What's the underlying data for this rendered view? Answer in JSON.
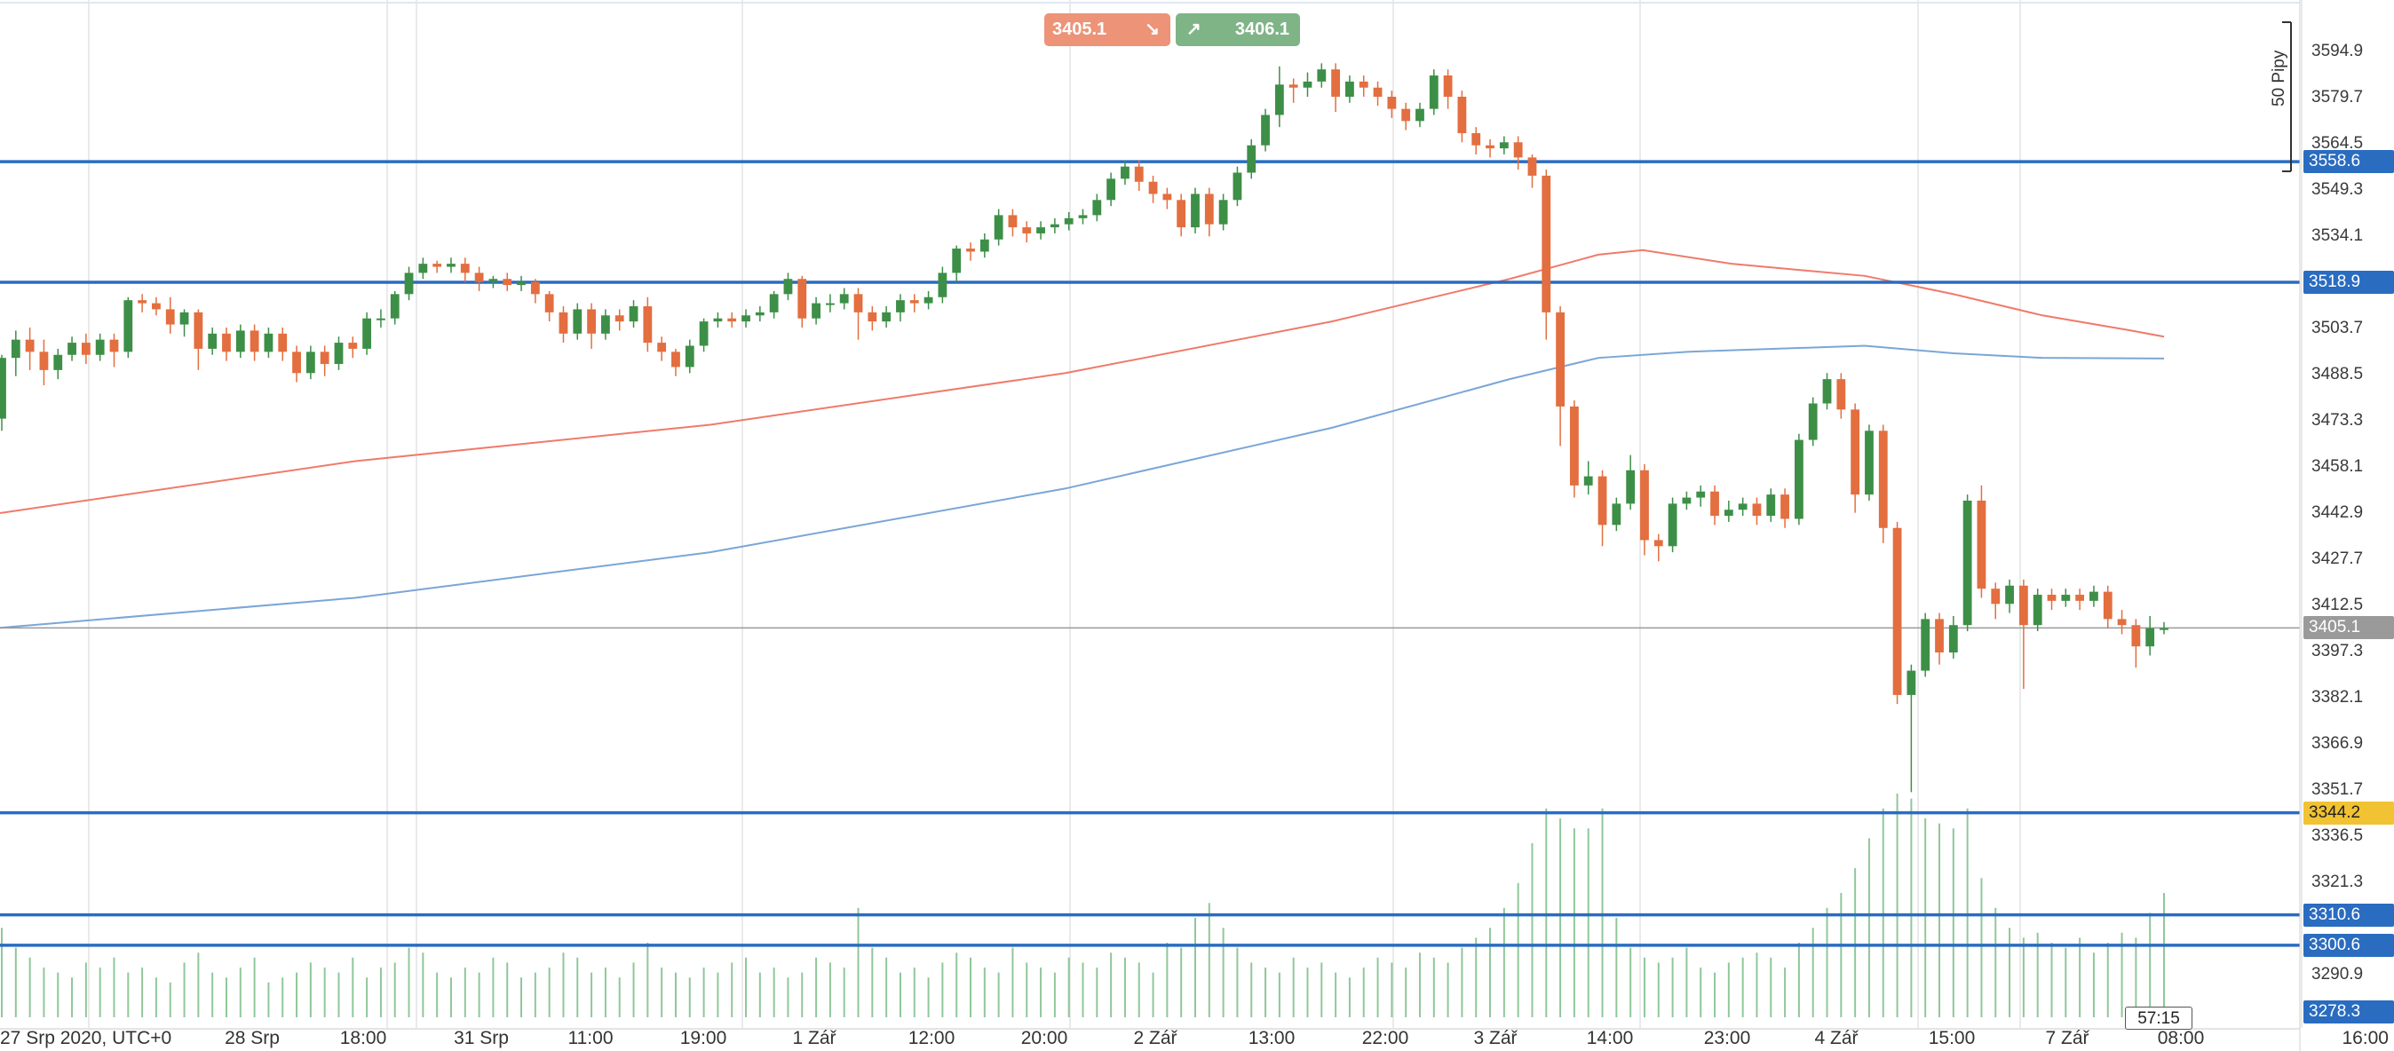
{
  "trade_buttons": {
    "sell_price": "3405.1",
    "buy_price": "3406.1",
    "sell_arrow": "↘",
    "buy_arrow": "↗",
    "sell_color": "#ec9378",
    "buy_color": "#7fb487"
  },
  "pips_label": "50 Pipy",
  "countdown": "57:15",
  "price_axis": {
    "ticks": [
      "3594.9",
      "3579.7",
      "3564.5",
      "3549.3",
      "3534.1",
      "3518.9",
      "3503.7",
      "3488.5",
      "3473.3",
      "3458.1",
      "3442.9",
      "3427.7",
      "3412.5",
      "3397.3",
      "3382.1",
      "3366.9",
      "3351.7",
      "3336.5",
      "3321.3",
      "3290.9"
    ],
    "tick_values": [
      3594.9,
      3579.7,
      3564.5,
      3549.3,
      3534.1,
      3518.9,
      3503.7,
      3488.5,
      3473.3,
      3458.1,
      3442.9,
      3427.7,
      3412.5,
      3397.3,
      3382.1,
      3366.9,
      3351.7,
      3336.5,
      3321.3,
      3290.9
    ],
    "current_price": "3405.1",
    "bottom_label": "3278.3"
  },
  "levels": [
    {
      "label": "3558.6",
      "value": 3558.6,
      "color": "#2a6cc0",
      "bg": "#2a6cc0"
    },
    {
      "label": "3518.9",
      "value": 3518.9,
      "color": "#2a6cc0",
      "bg": "#2a6cc0"
    },
    {
      "label": "3344.2",
      "value": 3344.2,
      "color": "#2a6cc0",
      "bg": "#f1c232"
    },
    {
      "label": "3310.6",
      "value": 3310.6,
      "color": "#2a6cc0",
      "bg": "#2a6cc0"
    },
    {
      "label": "3300.6",
      "value": 3300.6,
      "color": "#2a6cc0",
      "bg": "#2a6cc0"
    }
  ],
  "time_axis": {
    "labels": [
      "27 Srp 2020, UTC+0",
      "28 Srp",
      "18:00",
      "31 Srp",
      "11:00",
      "19:00",
      "1 Zář",
      "12:00",
      "20:00",
      "2 Zář",
      "13:00",
      "22:00",
      "3 Zář",
      "14:00",
      "23:00",
      "4 Zář",
      "15:00",
      "7 Zář",
      "08:00",
      "16:00"
    ]
  },
  "chart_data": {
    "type": "candlestick",
    "up_color": "#3d8f47",
    "down_color": "#e36e3f",
    "ma_fast_color": "#f07a6a",
    "ma_slow_color": "#7aa6d6",
    "ylim": [
      3278.3,
      3604.0
    ],
    "candles": [
      [
        3474,
        3494,
        3470,
        3495
      ],
      [
        3494,
        3500,
        3488,
        3503
      ],
      [
        3500,
        3496,
        3490,
        3504
      ],
      [
        3496,
        3490,
        3485,
        3500
      ],
      [
        3490,
        3495,
        3487,
        3497
      ],
      [
        3495,
        3499,
        3493,
        3501
      ],
      [
        3499,
        3495,
        3492,
        3502
      ],
      [
        3495,
        3500,
        3493,
        3502
      ],
      [
        3500,
        3496,
        3491,
        3502
      ],
      [
        3496,
        3513,
        3494,
        3514
      ],
      [
        3513,
        3512,
        3509,
        3515
      ],
      [
        3512,
        3510,
        3508,
        3514
      ],
      [
        3510,
        3505,
        3502,
        3514
      ],
      [
        3505,
        3509,
        3501,
        3510
      ],
      [
        3509,
        3497,
        3490,
        3510
      ],
      [
        3497,
        3502,
        3495,
        3504
      ],
      [
        3502,
        3496,
        3493,
        3504
      ],
      [
        3496,
        3503,
        3494,
        3505
      ],
      [
        3503,
        3496,
        3493,
        3505
      ],
      [
        3496,
        3502,
        3494,
        3504
      ],
      [
        3502,
        3496,
        3493,
        3504
      ],
      [
        3496,
        3489,
        3486,
        3498
      ],
      [
        3489,
        3496,
        3487,
        3498
      ],
      [
        3496,
        3492,
        3488,
        3498
      ],
      [
        3492,
        3499,
        3490,
        3501
      ],
      [
        3499,
        3497,
        3494,
        3501
      ],
      [
        3497,
        3507,
        3495,
        3509
      ],
      [
        3507,
        3507,
        3504,
        3510
      ],
      [
        3507,
        3515,
        3505,
        3516
      ],
      [
        3515,
        3522,
        3513,
        3524
      ],
      [
        3522,
        3525,
        3520,
        3527
      ],
      [
        3525,
        3524,
        3522,
        3526
      ],
      [
        3524,
        3525,
        3522,
        3527
      ],
      [
        3525,
        3522,
        3519,
        3527
      ],
      [
        3522,
        3519,
        3516,
        3524
      ],
      [
        3519,
        3520,
        3517,
        3521
      ],
      [
        3520,
        3518,
        3516,
        3522
      ],
      [
        3518,
        3519,
        3516,
        3521
      ],
      [
        3519,
        3515,
        3512,
        3520
      ],
      [
        3515,
        3509,
        3506,
        3516
      ],
      [
        3509,
        3502,
        3499,
        3511
      ],
      [
        3502,
        3510,
        3500,
        3512
      ],
      [
        3510,
        3502,
        3497,
        3512
      ],
      [
        3502,
        3508,
        3500,
        3510
      ],
      [
        3508,
        3506,
        3503,
        3510
      ],
      [
        3506,
        3511,
        3504,
        3513
      ],
      [
        3511,
        3499,
        3496,
        3514
      ],
      [
        3499,
        3496,
        3493,
        3501
      ],
      [
        3496,
        3491,
        3488,
        3497
      ],
      [
        3491,
        3498,
        3489,
        3500
      ],
      [
        3498,
        3506,
        3496,
        3507
      ],
      [
        3506,
        3507,
        3504,
        3509
      ],
      [
        3507,
        3506,
        3504,
        3509
      ],
      [
        3506,
        3508,
        3504,
        3510
      ],
      [
        3508,
        3509,
        3506,
        3511
      ],
      [
        3509,
        3515,
        3507,
        3516
      ],
      [
        3515,
        3520,
        3513,
        3522
      ],
      [
        3520,
        3507,
        3504,
        3521
      ],
      [
        3507,
        3512,
        3505,
        3514
      ],
      [
        3512,
        3512,
        3509,
        3515
      ],
      [
        3512,
        3515,
        3510,
        3517
      ],
      [
        3515,
        3509,
        3500,
        3517
      ],
      [
        3509,
        3506,
        3503,
        3511
      ],
      [
        3506,
        3509,
        3504,
        3511
      ],
      [
        3509,
        3513,
        3506,
        3515
      ],
      [
        3513,
        3512,
        3509,
        3515
      ],
      [
        3512,
        3514,
        3510,
        3516
      ],
      [
        3514,
        3522,
        3512,
        3524
      ],
      [
        3522,
        3530,
        3519,
        3531
      ],
      [
        3530,
        3529,
        3526,
        3532
      ],
      [
        3529,
        3533,
        3527,
        3535
      ],
      [
        3533,
        3541,
        3531,
        3543
      ],
      [
        3541,
        3537,
        3534,
        3543
      ],
      [
        3537,
        3535,
        3532,
        3539
      ],
      [
        3535,
        3537,
        3533,
        3539
      ],
      [
        3537,
        3538,
        3535,
        3540
      ],
      [
        3538,
        3540,
        3536,
        3542
      ],
      [
        3540,
        3541,
        3538,
        3543
      ],
      [
        3541,
        3546,
        3539,
        3548
      ],
      [
        3546,
        3553,
        3544,
        3555
      ],
      [
        3553,
        3557,
        3551,
        3559
      ],
      [
        3557,
        3552,
        3549,
        3559
      ],
      [
        3552,
        3548,
        3545,
        3554
      ],
      [
        3548,
        3546,
        3543,
        3550
      ],
      [
        3546,
        3537,
        3534,
        3548
      ],
      [
        3537,
        3548,
        3535,
        3550
      ],
      [
        3548,
        3538,
        3534,
        3550
      ],
      [
        3538,
        3546,
        3536,
        3548
      ],
      [
        3546,
        3555,
        3544,
        3557
      ],
      [
        3555,
        3564,
        3553,
        3566
      ],
      [
        3564,
        3574,
        3562,
        3576
      ],
      [
        3574,
        3584,
        3570,
        3590
      ],
      [
        3584,
        3583,
        3578,
        3586
      ],
      [
        3583,
        3585,
        3580,
        3588
      ],
      [
        3585,
        3589,
        3583,
        3591
      ],
      [
        3589,
        3580,
        3575,
        3591
      ],
      [
        3580,
        3585,
        3578,
        3587
      ],
      [
        3585,
        3583,
        3580,
        3587
      ],
      [
        3583,
        3580,
        3577,
        3585
      ],
      [
        3580,
        3576,
        3573,
        3582
      ],
      [
        3576,
        3572,
        3569,
        3578
      ],
      [
        3572,
        3576,
        3570,
        3578
      ],
      [
        3576,
        3587,
        3574,
        3589
      ],
      [
        3587,
        3580,
        3576,
        3589
      ],
      [
        3580,
        3568,
        3565,
        3582
      ],
      [
        3568,
        3564,
        3561,
        3570
      ],
      [
        3564,
        3563,
        3560,
        3566
      ],
      [
        3563,
        3565,
        3561,
        3567
      ],
      [
        3565,
        3560,
        3556,
        3567
      ],
      [
        3560,
        3554,
        3550,
        3561
      ],
      [
        3554,
        3509,
        3500,
        3556
      ],
      [
        3509,
        3478,
        3465,
        3511
      ],
      [
        3478,
        3452,
        3448,
        3480
      ],
      [
        3452,
        3455,
        3449,
        3460
      ],
      [
        3455,
        3439,
        3432,
        3457
      ],
      [
        3439,
        3446,
        3437,
        3448
      ],
      [
        3446,
        3457,
        3444,
        3462
      ],
      [
        3457,
        3434,
        3429,
        3459
      ],
      [
        3434,
        3432,
        3427,
        3436
      ],
      [
        3432,
        3446,
        3430,
        3448
      ],
      [
        3446,
        3448,
        3444,
        3450
      ],
      [
        3448,
        3450,
        3445,
        3452
      ],
      [
        3450,
        3442,
        3439,
        3452
      ],
      [
        3442,
        3444,
        3440,
        3447
      ],
      [
        3444,
        3446,
        3442,
        3448
      ],
      [
        3446,
        3442,
        3439,
        3448
      ],
      [
        3442,
        3449,
        3440,
        3451
      ],
      [
        3449,
        3441,
        3438,
        3451
      ],
      [
        3441,
        3467,
        3439,
        3469
      ],
      [
        3467,
        3479,
        3465,
        3481
      ],
      [
        3479,
        3487,
        3477,
        3489
      ],
      [
        3487,
        3477,
        3474,
        3489
      ],
      [
        3477,
        3449,
        3443,
        3479
      ],
      [
        3449,
        3470,
        3447,
        3472
      ],
      [
        3470,
        3438,
        3433,
        3472
      ],
      [
        3438,
        3383,
        3380,
        3440
      ],
      [
        3383,
        3391,
        3351,
        3393
      ],
      [
        3391,
        3408,
        3389,
        3410
      ],
      [
        3408,
        3397,
        3393,
        3410
      ],
      [
        3397,
        3406,
        3395,
        3409
      ],
      [
        3406,
        3447,
        3404,
        3449
      ],
      [
        3447,
        3418,
        3415,
        3452
      ],
      [
        3418,
        3413,
        3408,
        3420
      ],
      [
        3413,
        3419,
        3410,
        3421
      ],
      [
        3419,
        3406,
        3385,
        3421
      ],
      [
        3406,
        3416,
        3404,
        3418
      ],
      [
        3416,
        3414,
        3411,
        3418
      ],
      [
        3414,
        3416,
        3412,
        3418
      ],
      [
        3416,
        3414,
        3411,
        3418
      ],
      [
        3414,
        3417,
        3412,
        3419
      ],
      [
        3417,
        3408,
        3405,
        3419
      ],
      [
        3408,
        3406,
        3403,
        3411
      ],
      [
        3406,
        3399,
        3392,
        3408
      ],
      [
        3399,
        3405,
        3396,
        3409
      ],
      [
        3405,
        3405,
        3403,
        3407
      ]
    ],
    "volumes": [
      18,
      14,
      12,
      10,
      9,
      8,
      11,
      10,
      12,
      9,
      10,
      8,
      7,
      11,
      13,
      9,
      8,
      10,
      12,
      7,
      8,
      9,
      11,
      10,
      9,
      12,
      8,
      10,
      11,
      14,
      13,
      9,
      8,
      10,
      9,
      12,
      11,
      8,
      9,
      10,
      13,
      12,
      9,
      10,
      8,
      11,
      15,
      10,
      9,
      8,
      10,
      9,
      11,
      12,
      9,
      10,
      8,
      9,
      12,
      11,
      10,
      22,
      14,
      12,
      9,
      10,
      8,
      11,
      13,
      12,
      10,
      9,
      14,
      11,
      10,
      9,
      12,
      11,
      10,
      13,
      12,
      11,
      9,
      15,
      14,
      20,
      23,
      18,
      14,
      11,
      10,
      9,
      12,
      10,
      11,
      9,
      8,
      10,
      12,
      11,
      10,
      13,
      12,
      11,
      14,
      16,
      18,
      22,
      27,
      35,
      42,
      40,
      38,
      38,
      42,
      20,
      14,
      12,
      11,
      12,
      14,
      10,
      9,
      11,
      12,
      13,
      12,
      10,
      15,
      18,
      22,
      25,
      30,
      36,
      42,
      45,
      44,
      40,
      39,
      38,
      42,
      28,
      22,
      18,
      16,
      17,
      15,
      14,
      16,
      13,
      15,
      17,
      16,
      21,
      25
    ],
    "ma_fast": [
      [
        0,
        3442.9
      ],
      [
        400,
        3460
      ],
      [
        800,
        3472
      ],
      [
        1200,
        3489
      ],
      [
        1500,
        3506
      ],
      [
        1700,
        3520
      ],
      [
        1800,
        3528
      ],
      [
        1850,
        3529.5
      ],
      [
        1950,
        3525
      ],
      [
        2100,
        3521
      ],
      [
        2200,
        3515
      ],
      [
        2300,
        3508
      ],
      [
        2400,
        3503
      ],
      [
        2437,
        3501
      ]
    ],
    "ma_slow": [
      [
        0,
        3405.1
      ],
      [
        400,
        3415
      ],
      [
        800,
        3430
      ],
      [
        1200,
        3451
      ],
      [
        1500,
        3471
      ],
      [
        1700,
        3487
      ],
      [
        1800,
        3494
      ],
      [
        1900,
        3496
      ],
      [
        2100,
        3498
      ],
      [
        2200,
        3495.5
      ],
      [
        2300,
        3494
      ],
      [
        2437,
        3493.8
      ]
    ]
  }
}
